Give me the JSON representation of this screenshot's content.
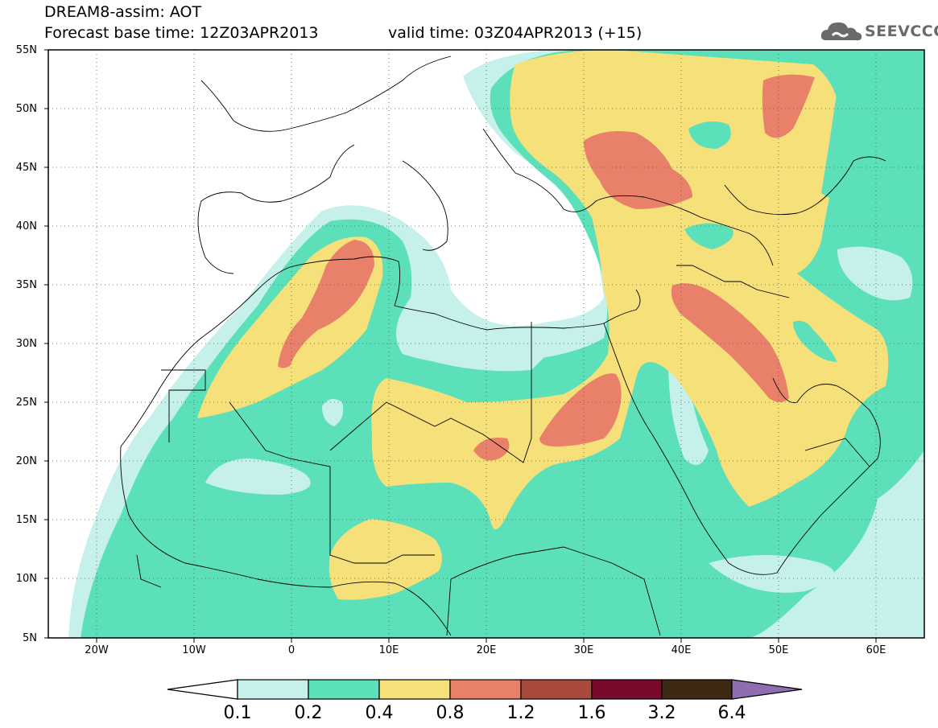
{
  "header": {
    "title_line1": "DREAM8-assim: AOT",
    "title_line2": "Forecast base time: 12Z03APR2013",
    "valid_time": "valid time: 03Z04APR2013 (+15)"
  },
  "logo": {
    "text": "SEEVCCC",
    "icon": "cloud-icon"
  },
  "map": {
    "lat_labels": [
      "55N",
      "50N",
      "45N",
      "40N",
      "35N",
      "30N",
      "25N",
      "20N",
      "15N",
      "10N",
      "5N"
    ],
    "lon_labels": [
      "20W",
      "10W",
      "0",
      "10E",
      "20E",
      "30E",
      "40E",
      "50E",
      "60E"
    ],
    "lat_range": [
      5,
      55
    ],
    "lon_range": [
      -25,
      65
    ],
    "grid": "dotted"
  },
  "colorbar": {
    "labels": [
      "0.1",
      "0.2",
      "0.4",
      "0.8",
      "1.2",
      "1.6",
      "3.2",
      "6.4"
    ],
    "colors": [
      "#ffffff",
      "#c6f1ea",
      "#5be0b9",
      "#f5e07a",
      "#e8806a",
      "#a84a3c",
      "#7a0a2a",
      "#3e2a14",
      "#8e6db0"
    ]
  }
}
